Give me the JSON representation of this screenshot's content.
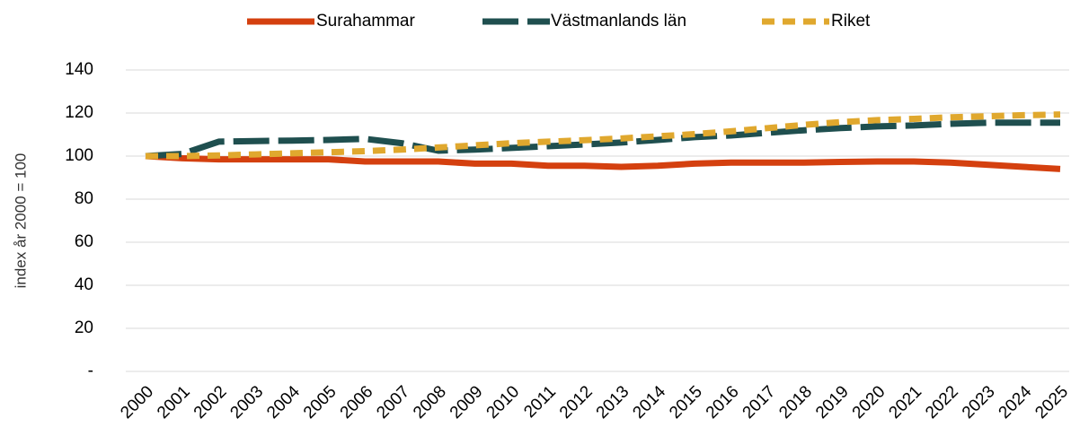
{
  "chart_data": {
    "type": "line",
    "y_label": "index år 2000 = 100",
    "categories": [
      "2000",
      "2001",
      "2002",
      "2003",
      "2004",
      "2005",
      "2006",
      "2007",
      "2008",
      "2009",
      "2010",
      "2011",
      "2012",
      "2013",
      "2014",
      "2015",
      "2016",
      "2017",
      "2018",
      "2019",
      "2020",
      "2021",
      "2022",
      "2023",
      "2024",
      "2025"
    ],
    "series": [
      {
        "name": "Surahammar",
        "color": "#d4400f",
        "style": "solid",
        "values": [
          100,
          99,
          98.5,
          98.5,
          98.5,
          98.5,
          97.5,
          97.5,
          97.5,
          96.5,
          96.5,
          95.5,
          95.5,
          95,
          95.5,
          96.5,
          97,
          97,
          97,
          97.3,
          97.5,
          97.5,
          97,
          96,
          95,
          94
        ]
      },
      {
        "name": "Västmanlands län",
        "color": "#1f4f4f",
        "style": "long-dash",
        "values": [
          100,
          101,
          106.7,
          107,
          107.2,
          107.5,
          108,
          106,
          102.5,
          103,
          103.8,
          104.6,
          105.4,
          106.3,
          107.5,
          108.8,
          109.6,
          110.8,
          112,
          113,
          113.8,
          114.2,
          115,
          115.5,
          115.5,
          115.5
        ]
      },
      {
        "name": "Riket",
        "color": "#e0a82e",
        "style": "dash",
        "values": [
          100,
          100,
          100.3,
          100.8,
          101.3,
          101.8,
          102.3,
          103,
          104,
          105,
          106,
          106.7,
          107.4,
          108.2,
          109.2,
          110.2,
          111.5,
          113,
          114.5,
          115.8,
          116.7,
          117.3,
          118,
          118.5,
          119,
          119.3
        ]
      }
    ],
    "ylim": [
      0,
      140
    ],
    "yticks": [
      {
        "value": 0,
        "label": "-"
      },
      20,
      40,
      60,
      80,
      100,
      120,
      140
    ],
    "grid": true,
    "legend": "top"
  }
}
